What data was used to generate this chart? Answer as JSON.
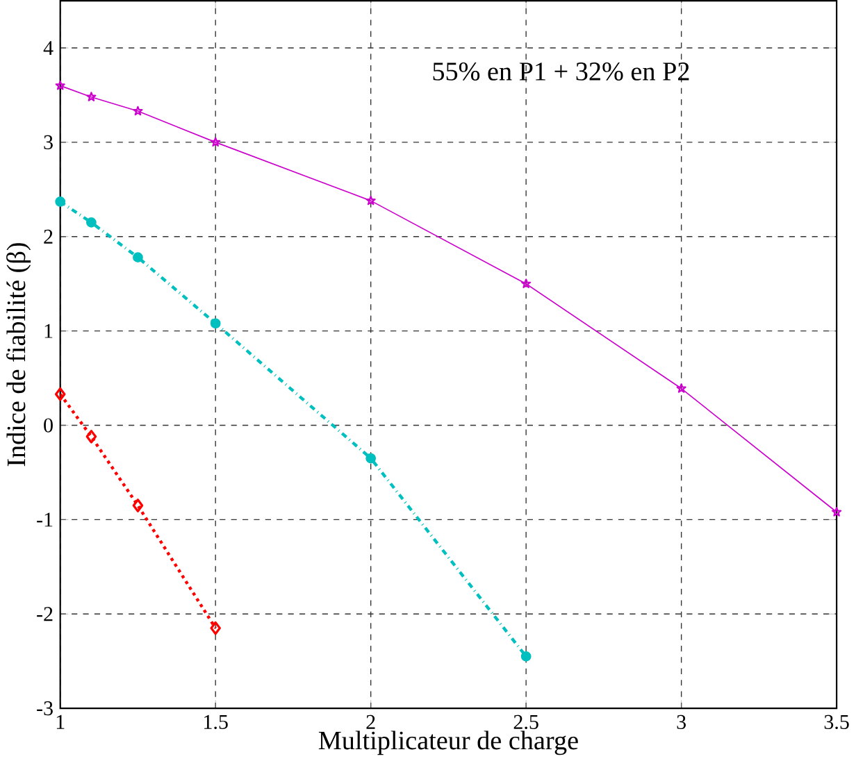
{
  "chart_data": {
    "type": "line",
    "xlabel": "Multiplicateur de charge",
    "ylabel": "Indice de fiabilité (β)",
    "annotations": [
      "55% en P1 + 32% en P2"
    ],
    "series": [
      {
        "color": "#cc00cc",
        "marker": "star",
        "line_style": "solid",
        "x": [
          1,
          1.1,
          1.25,
          1.5,
          2,
          2.5,
          3,
          3.5
        ],
        "values": [
          3.6,
          3.48,
          3.33,
          3.0,
          2.38,
          1.5,
          0.39,
          -0.92
        ]
      },
      {
        "color": "#00bfbf",
        "marker": "circle",
        "line_style": "dashdot",
        "x": [
          1,
          1.1,
          1.25,
          1.5,
          2,
          2.5
        ],
        "values": [
          2.37,
          2.15,
          1.78,
          1.08,
          -0.35,
          -2.45
        ]
      },
      {
        "color": "#ff0000",
        "marker": "diamond",
        "line_style": "dotted",
        "x": [
          1,
          1.1,
          1.25,
          1.5
        ],
        "values": [
          0.33,
          -0.12,
          -0.85,
          -2.15
        ]
      }
    ],
    "xlim": [
      1,
      3.5
    ],
    "xticks": [
      1,
      1.5,
      2,
      2.5,
      3,
      3.5
    ],
    "ylim": [
      -3,
      4.5
    ],
    "yticks": [
      -3,
      -2,
      -1,
      0,
      1,
      2,
      3,
      4
    ],
    "grid": true
  }
}
